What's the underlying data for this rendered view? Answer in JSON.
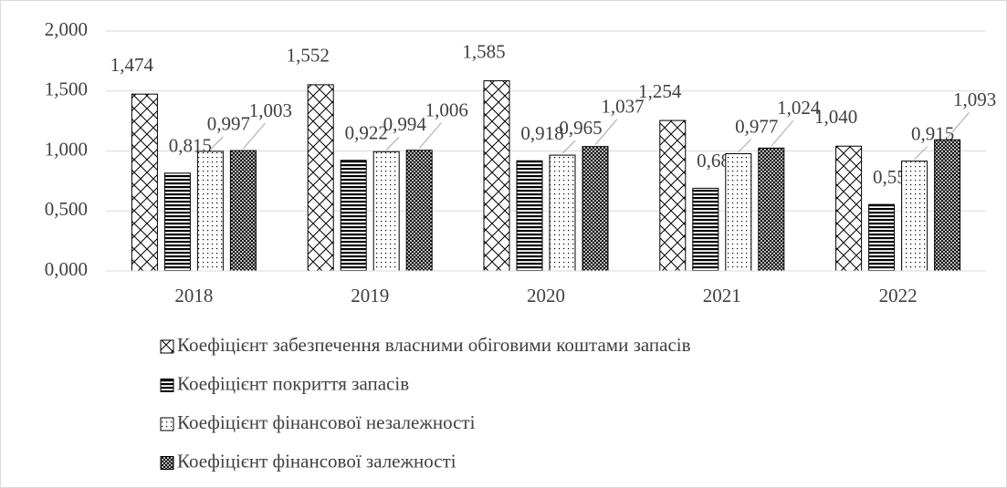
{
  "chart_data": {
    "type": "bar",
    "categories": [
      "2018",
      "2019",
      "2020",
      "2021",
      "2022"
    ],
    "series": [
      {
        "name": "Коефіцієнт забезпечення власними обіговими коштами запасів",
        "color": "#000000",
        "pattern": "wide-diagonal-cross",
        "values": [
          1.474,
          1.552,
          1.585,
          1.254,
          1.04
        ],
        "value_labels": [
          "1,474",
          "1,552",
          "1,585",
          "1,254",
          "1,040"
        ]
      },
      {
        "name": "Коефіцієнт покриття запасів",
        "color": "#000000",
        "pattern": "horizontal",
        "values": [
          0.815,
          0.922,
          0.918,
          0.689,
          0.554
        ],
        "value_labels": [
          "0,815",
          "0,922",
          "0,918",
          "0,689",
          "0,554"
        ]
      },
      {
        "name": "Коефіцієнт фінансової незалежності",
        "color": "#000000",
        "pattern": "dots",
        "values": [
          0.997,
          0.994,
          0.965,
          0.977,
          0.915
        ],
        "value_labels": [
          "0,997",
          "0,994",
          "0,965",
          "0,977",
          "0,915"
        ]
      },
      {
        "name": "Коефіцієнт фінансової залежності",
        "color": "#000000",
        "pattern": "fine-cross",
        "values": [
          1.003,
          1.006,
          1.037,
          1.024,
          1.093
        ],
        "value_labels": [
          "1,003",
          "1,006",
          "1,037",
          "1,024",
          "1,093"
        ]
      }
    ],
    "ylim": [
      0,
      2
    ],
    "yticks": [
      {
        "value": 0,
        "label": "0,000"
      },
      {
        "value": 0.5,
        "label": "0,500"
      },
      {
        "value": 1,
        "label": "1,000"
      },
      {
        "value": 1.5,
        "label": "1,500"
      },
      {
        "value": 2,
        "label": "2,000"
      }
    ],
    "grid": true,
    "legend": "bottom"
  }
}
